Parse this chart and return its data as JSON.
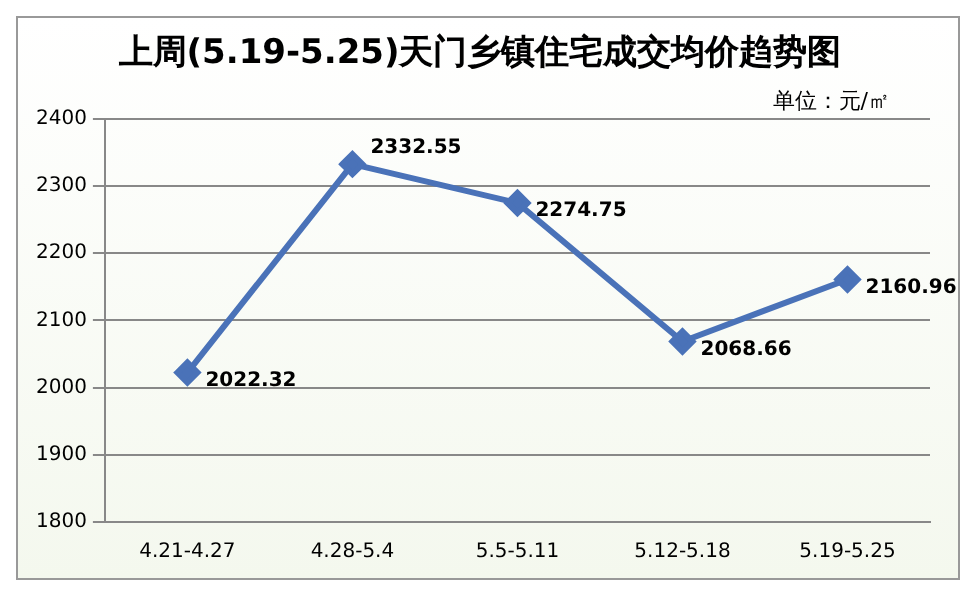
{
  "chart_data": {
    "type": "line",
    "title": "上周(5.19-5.25)天门乡镇住宅成交均价趋势图",
    "annotations": [
      "单位：元/㎡"
    ],
    "categories": [
      "4.21-4.27",
      "4.28-5.4",
      "5.5-5.11",
      "5.12-5.18",
      "5.19-5.25"
    ],
    "series": [
      {
        "color": "#4a72b8",
        "values": [
          2022.32,
          2332.55,
          2274.75,
          2068.66,
          2160.96
        ]
      }
    ],
    "ylim": [
      1800,
      2400
    ],
    "yticks": [
      1800,
      1900,
      2000,
      2100,
      2200,
      2300,
      2400
    ],
    "grid": "y",
    "marker": "diamond",
    "line_style": "solid",
    "data_labels": true,
    "legend": false
  }
}
